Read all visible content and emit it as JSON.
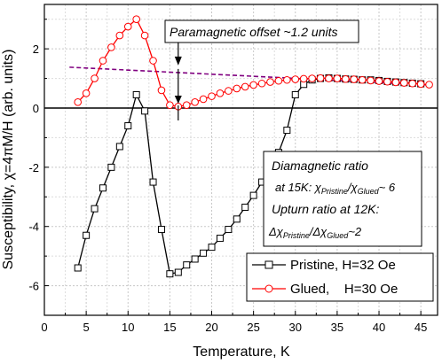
{
  "chart_data": {
    "type": "scatter",
    "xlabel": "Temperature, K",
    "ylabel": "Susceptibility, χ=4πM/H (arb. units)",
    "xlim": [
      0,
      47
    ],
    "ylim": [
      -7,
      3.5
    ],
    "x_ticks": [
      "0",
      "5",
      "10",
      "15",
      "20",
      "25",
      "30",
      "35",
      "40",
      "45"
    ],
    "y_ticks": [
      "-6",
      "-4",
      "-2",
      "0",
      "2"
    ],
    "grid": true,
    "legend_position": "bottom-right",
    "series": [
      {
        "name": "Pristine, H=32 Oe",
        "color": "#000000",
        "marker": "square",
        "x": [
          4,
          5,
          6,
          7,
          8,
          9,
          10,
          11,
          12,
          13,
          14,
          15,
          16,
          17,
          18,
          19,
          20,
          21,
          22,
          23,
          24,
          25,
          26,
          27,
          28,
          29,
          30,
          31,
          32,
          33,
          34,
          35,
          36,
          37,
          38,
          39,
          40,
          41,
          42,
          43,
          44,
          45
        ],
        "y": [
          -5.4,
          -4.3,
          -3.4,
          -2.7,
          -2.0,
          -1.3,
          -0.6,
          0.45,
          -0.1,
          -2.5,
          -4.1,
          -5.6,
          -5.55,
          -5.3,
          -5.1,
          -4.9,
          -4.7,
          -4.4,
          -4.1,
          -3.75,
          -3.35,
          -2.95,
          -2.5,
          -2.05,
          -1.5,
          -0.75,
          0.45,
          0.8,
          0.95,
          1.0,
          1.02,
          1.0,
          0.98,
          0.97,
          0.95,
          0.95,
          0.93,
          0.9,
          0.88,
          0.86,
          0.84,
          0.82
        ]
      },
      {
        "name": "Glued,    H=30 Oe",
        "color": "#ff0000",
        "marker": "circle",
        "x": [
          4,
          5,
          6,
          7,
          8,
          9,
          10,
          11,
          12,
          13,
          14,
          15,
          16,
          17,
          18,
          19,
          20,
          21,
          22,
          23,
          24,
          25,
          26,
          27,
          28,
          29,
          30,
          31,
          32,
          33,
          34,
          35,
          36,
          37,
          38,
          39,
          40,
          41,
          42,
          43,
          44,
          45,
          46
        ],
        "y": [
          0.2,
          0.5,
          1.0,
          1.6,
          2.05,
          2.45,
          2.75,
          3.0,
          2.45,
          1.6,
          0.6,
          0.1,
          0.05,
          0.1,
          0.2,
          0.3,
          0.4,
          0.5,
          0.58,
          0.66,
          0.72,
          0.78,
          0.83,
          0.88,
          0.92,
          0.95,
          0.97,
          0.99,
          1.0,
          1.01,
          1.0,
          1.0,
          0.98,
          0.97,
          0.95,
          0.93,
          0.91,
          0.89,
          0.87,
          0.85,
          0.83,
          0.81,
          0.79
        ]
      }
    ],
    "trend_line": {
      "color": "#800080",
      "x": [
        3,
        46
      ],
      "y": [
        1.38,
        0.78
      ]
    },
    "zero_line": 0,
    "annotations": {
      "offset": "Paramagnetic offset ~1.2 units",
      "box_line1": "Diamagnetic ratio",
      "box_line2_prefix": "at 15K: χ",
      "box_line2_sub1": "Pristine",
      "box_line2_mid": "/χ",
      "box_line2_sub2": "Glued",
      "box_line2_suffix": "~ 6",
      "box_line3": "Upturn ratio at 12K:",
      "box_line4_prefix": "Δχ",
      "box_line4_sub1": "Pristine",
      "box_line4_mid": "/Δχ",
      "box_line4_sub2": "Glued",
      "box_line4_suffix": "~2"
    },
    "offset_arrow_x": 16,
    "offset_arrow_y": [
      1.38,
      0.12
    ]
  }
}
